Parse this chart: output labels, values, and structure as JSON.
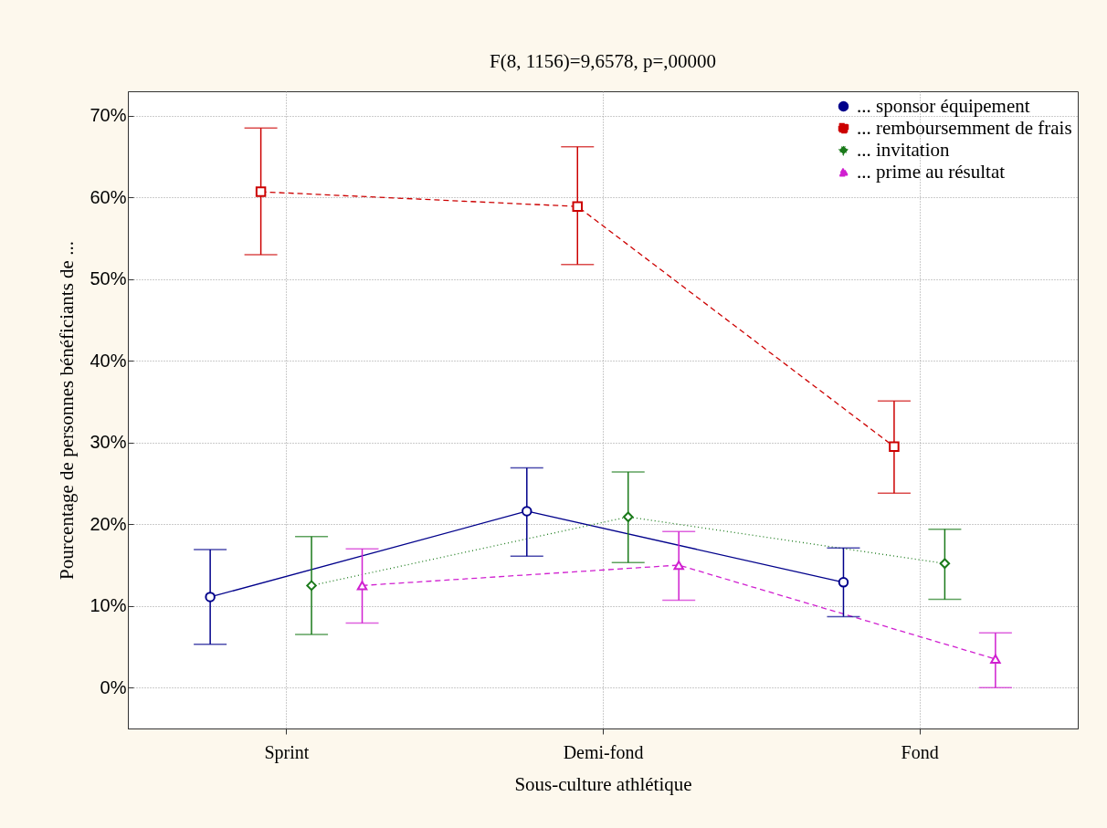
{
  "chart_data": {
    "type": "line",
    "title": "F(8, 1156)=9,6578, p=,00000",
    "xlabel": "Sous-culture athlétique",
    "ylabel": "Pourcentage de personnes bénéficiants de ...",
    "categories": [
      "Sprint",
      "Demi-fond",
      "Fond"
    ],
    "ylim": [
      -5,
      73
    ],
    "yticks": [
      {
        "value": 0,
        "label": "0%"
      },
      {
        "value": 10,
        "label": "10%"
      },
      {
        "value": 20,
        "label": "20%"
      },
      {
        "value": 30,
        "label": "30%"
      },
      {
        "value": 40,
        "label": "40%"
      },
      {
        "value": 50,
        "label": "50%"
      },
      {
        "value": 60,
        "label": "60%"
      },
      {
        "value": 70,
        "label": "70%"
      }
    ],
    "grid": true,
    "legend": "top right",
    "series": [
      {
        "name": "... sponsor équipement",
        "color": "#00008b",
        "marker": "circle",
        "line_style": "solid",
        "values": [
          11.1,
          21.6,
          12.9
        ],
        "errors": [
          [
            5.3,
            16.9
          ],
          [
            16.1,
            26.9
          ],
          [
            8.7,
            17.1
          ]
        ]
      },
      {
        "name": "... remboursemment de frais",
        "color": "#cc0000",
        "marker": "square",
        "line_style": "dashed",
        "values": [
          60.7,
          58.9,
          29.5
        ],
        "errors": [
          [
            53.0,
            68.5
          ],
          [
            51.8,
            66.2
          ],
          [
            23.8,
            35.1
          ]
        ]
      },
      {
        "name": "... invitation",
        "color": "#1a7a1a",
        "marker": "diamond",
        "line_style": "dotted",
        "values": [
          12.5,
          20.9,
          15.2
        ],
        "errors": [
          [
            6.5,
            18.5
          ],
          [
            15.3,
            26.4
          ],
          [
            10.8,
            19.4
          ]
        ]
      },
      {
        "name": "... prime au résultat",
        "color": "#d020d0",
        "marker": "triangle",
        "line_style": "dashed",
        "values": [
          12.5,
          15.0,
          3.5
        ],
        "errors": [
          [
            7.9,
            17.0
          ],
          [
            10.7,
            19.1
          ],
          [
            0.0,
            6.7
          ]
        ]
      }
    ]
  }
}
